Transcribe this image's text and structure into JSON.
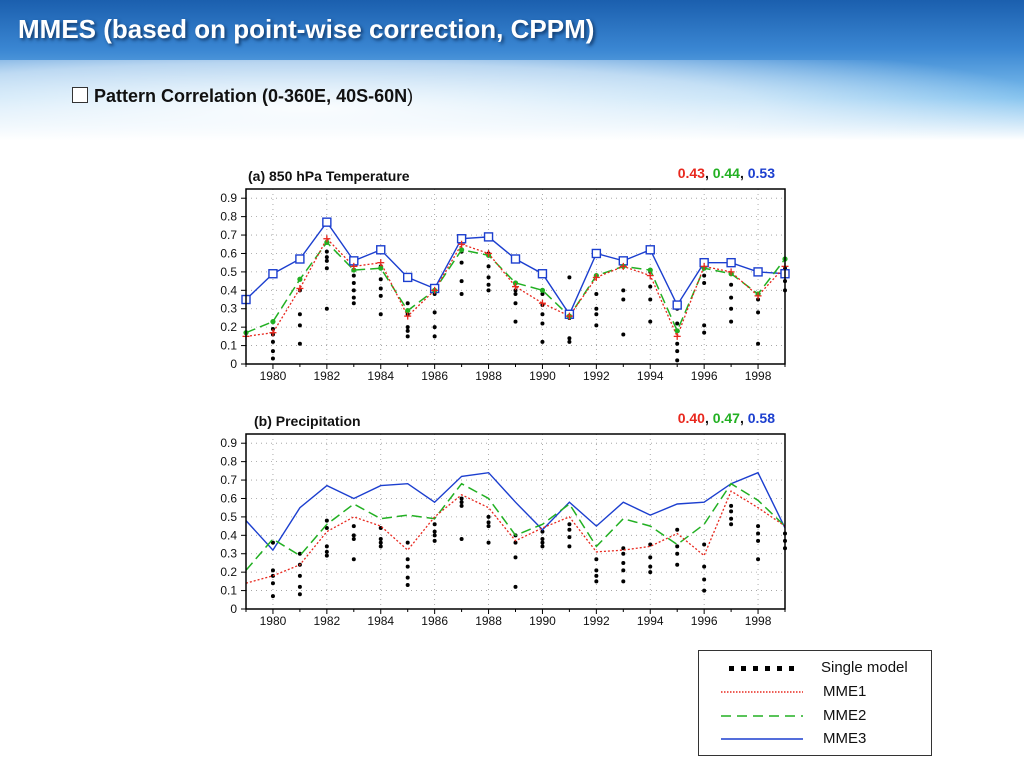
{
  "slide": {
    "title": "MMES (based on point-wise correction, CPPM)",
    "subtitle_bold": "Pattern Correlation (0-360E, 40S-60N",
    "subtitle_tail": ")"
  },
  "colors": {
    "mme1": "#e8281e",
    "mme2": "#22b022",
    "mme3": "#1c3fcf",
    "single": "#000000"
  },
  "legend": {
    "single": "Single model",
    "mme1": "MME1",
    "mme2": "MME2",
    "mme3": "MME3"
  },
  "chart_data": [
    {
      "type": "line",
      "title": "(a) 850 hPa Temperature",
      "scores": {
        "mme1": "0.43",
        "mme2": "0.44",
        "mme3": "0.53",
        "sep": ", "
      },
      "x": [
        1979,
        1980,
        1981,
        1982,
        1983,
        1984,
        1985,
        1986,
        1987,
        1988,
        1989,
        1990,
        1991,
        1992,
        1993,
        1994,
        1995,
        1996,
        1997,
        1998,
        1999
      ],
      "xlim": [
        1979,
        1999
      ],
      "ylim": [
        0,
        0.95
      ],
      "xticks": [
        1980,
        1982,
        1984,
        1986,
        1988,
        1990,
        1992,
        1994,
        1996,
        1998
      ],
      "yticks": [
        0,
        0.1,
        0.2,
        0.3,
        0.4,
        0.5,
        0.6,
        0.7,
        0.8,
        0.9
      ],
      "ytick_labels": [
        "0",
        "0.1",
        "0.2",
        "0.3",
        "0.4",
        "0.5",
        "0.6",
        "0.7",
        "0.8",
        "0.9"
      ],
      "series": [
        {
          "name": "MME1",
          "values": [
            0.15,
            0.17,
            0.41,
            0.68,
            0.53,
            0.55,
            0.26,
            0.4,
            0.65,
            0.6,
            0.42,
            0.33,
            0.26,
            0.47,
            0.53,
            0.48,
            0.15,
            0.53,
            0.5,
            0.37,
            0.53
          ]
        },
        {
          "name": "MME2",
          "values": [
            0.17,
            0.23,
            0.46,
            0.66,
            0.51,
            0.52,
            0.29,
            0.4,
            0.62,
            0.59,
            0.44,
            0.4,
            0.26,
            0.48,
            0.53,
            0.51,
            0.18,
            0.52,
            0.49,
            0.38,
            0.57
          ]
        },
        {
          "name": "MME3",
          "values": [
            0.35,
            0.49,
            0.57,
            0.77,
            0.56,
            0.62,
            0.47,
            0.41,
            0.68,
            0.69,
            0.57,
            0.49,
            0.27,
            0.6,
            0.56,
            0.62,
            0.32,
            0.55,
            0.55,
            0.5,
            0.49
          ]
        },
        {
          "name": "Single model",
          "points": [
            [
              1980,
              0.03
            ],
            [
              1980,
              0.07
            ],
            [
              1980,
              0.12
            ],
            [
              1980,
              0.16
            ],
            [
              1980,
              0.19
            ],
            [
              1981,
              0.11
            ],
            [
              1981,
              0.21
            ],
            [
              1981,
              0.27
            ],
            [
              1981,
              0.4
            ],
            [
              1982,
              0.3
            ],
            [
              1982,
              0.52
            ],
            [
              1982,
              0.56
            ],
            [
              1982,
              0.58
            ],
            [
              1982,
              0.61
            ],
            [
              1983,
              0.33
            ],
            [
              1983,
              0.36
            ],
            [
              1983,
              0.4
            ],
            [
              1983,
              0.44
            ],
            [
              1983,
              0.48
            ],
            [
              1984,
              0.27
            ],
            [
              1984,
              0.37
            ],
            [
              1984,
              0.41
            ],
            [
              1984,
              0.46
            ],
            [
              1984,
              0.53
            ],
            [
              1985,
              0.15
            ],
            [
              1985,
              0.18
            ],
            [
              1985,
              0.2
            ],
            [
              1985,
              0.27
            ],
            [
              1985,
              0.33
            ],
            [
              1986,
              0.15
            ],
            [
              1986,
              0.2
            ],
            [
              1986,
              0.28
            ],
            [
              1986,
              0.38
            ],
            [
              1987,
              0.38
            ],
            [
              1987,
              0.45
            ],
            [
              1987,
              0.55
            ],
            [
              1987,
              0.61
            ],
            [
              1988,
              0.4
            ],
            [
              1988,
              0.43
            ],
            [
              1988,
              0.47
            ],
            [
              1988,
              0.53
            ],
            [
              1988,
              0.6
            ],
            [
              1989,
              0.23
            ],
            [
              1989,
              0.33
            ],
            [
              1989,
              0.38
            ],
            [
              1989,
              0.4
            ],
            [
              1990,
              0.12
            ],
            [
              1990,
              0.22
            ],
            [
              1990,
              0.27
            ],
            [
              1990,
              0.32
            ],
            [
              1990,
              0.38
            ],
            [
              1991,
              0.12
            ],
            [
              1991,
              0.14
            ],
            [
              1991,
              0.25
            ],
            [
              1991,
              0.47
            ],
            [
              1992,
              0.21
            ],
            [
              1992,
              0.27
            ],
            [
              1992,
              0.3
            ],
            [
              1992,
              0.38
            ],
            [
              1993,
              0.16
            ],
            [
              1993,
              0.35
            ],
            [
              1993,
              0.4
            ],
            [
              1994,
              0.23
            ],
            [
              1994,
              0.35
            ],
            [
              1994,
              0.42
            ],
            [
              1994,
              0.5
            ],
            [
              1995,
              0.02
            ],
            [
              1995,
              0.07
            ],
            [
              1995,
              0.11
            ],
            [
              1995,
              0.22
            ],
            [
              1995,
              0.3
            ],
            [
              1996,
              0.17
            ],
            [
              1996,
              0.21
            ],
            [
              1996,
              0.44
            ],
            [
              1996,
              0.48
            ],
            [
              1997,
              0.23
            ],
            [
              1997,
              0.3
            ],
            [
              1997,
              0.36
            ],
            [
              1997,
              0.43
            ],
            [
              1998,
              0.11
            ],
            [
              1998,
              0.28
            ],
            [
              1998,
              0.35
            ],
            [
              1998,
              0.38
            ],
            [
              1999,
              0.4
            ],
            [
              1999,
              0.45
            ],
            [
              1999,
              0.52
            ]
          ]
        }
      ]
    },
    {
      "type": "line",
      "title": "(b) Precipitation",
      "scores": {
        "mme1": "0.40",
        "mme2": "0.47",
        "mme3": "0.58",
        "sep": ", "
      },
      "x": [
        1979,
        1980,
        1981,
        1982,
        1983,
        1984,
        1985,
        1986,
        1987,
        1988,
        1989,
        1990,
        1991,
        1992,
        1993,
        1994,
        1995,
        1996,
        1997,
        1998,
        1999
      ],
      "xlim": [
        1979,
        1999
      ],
      "ylim": [
        0,
        0.95
      ],
      "xticks": [
        1980,
        1982,
        1984,
        1986,
        1988,
        1990,
        1992,
        1994,
        1996,
        1998
      ],
      "yticks": [
        0,
        0.1,
        0.2,
        0.3,
        0.4,
        0.5,
        0.6,
        0.7,
        0.8,
        0.9
      ],
      "ytick_labels": [
        "0",
        "0.1",
        "0.2",
        "0.3",
        "0.4",
        "0.5",
        "0.6",
        "0.7",
        "0.8",
        "0.9"
      ],
      "series": [
        {
          "name": "MME1",
          "values": [
            0.14,
            0.18,
            0.24,
            0.42,
            0.5,
            0.45,
            0.32,
            0.5,
            0.62,
            0.55,
            0.37,
            0.44,
            0.5,
            0.31,
            0.32,
            0.34,
            0.41,
            0.29,
            0.64,
            0.55,
            0.45
          ]
        },
        {
          "name": "MME2",
          "values": [
            0.21,
            0.38,
            0.29,
            0.46,
            0.57,
            0.49,
            0.51,
            0.49,
            0.68,
            0.6,
            0.4,
            0.46,
            0.57,
            0.34,
            0.49,
            0.45,
            0.35,
            0.46,
            0.68,
            0.59,
            0.45
          ]
        },
        {
          "name": "MME3",
          "values": [
            0.48,
            0.32,
            0.55,
            0.67,
            0.6,
            0.67,
            0.68,
            0.58,
            0.72,
            0.74,
            0.58,
            0.43,
            0.58,
            0.45,
            0.58,
            0.51,
            0.57,
            0.58,
            0.68,
            0.74,
            0.44
          ]
        },
        {
          "name": "Single model",
          "points": [
            [
              1980,
              0.07
            ],
            [
              1980,
              0.14
            ],
            [
              1980,
              0.18
            ],
            [
              1980,
              0.21
            ],
            [
              1980,
              0.36
            ],
            [
              1981,
              0.08
            ],
            [
              1981,
              0.12
            ],
            [
              1981,
              0.18
            ],
            [
              1981,
              0.24
            ],
            [
              1981,
              0.3
            ],
            [
              1982,
              0.29
            ],
            [
              1982,
              0.31
            ],
            [
              1982,
              0.34
            ],
            [
              1982,
              0.44
            ],
            [
              1982,
              0.48
            ],
            [
              1983,
              0.27
            ],
            [
              1983,
              0.38
            ],
            [
              1983,
              0.4
            ],
            [
              1983,
              0.45
            ],
            [
              1984,
              0.34
            ],
            [
              1984,
              0.36
            ],
            [
              1984,
              0.38
            ],
            [
              1984,
              0.44
            ],
            [
              1985,
              0.13
            ],
            [
              1985,
              0.17
            ],
            [
              1985,
              0.23
            ],
            [
              1985,
              0.27
            ],
            [
              1985,
              0.36
            ],
            [
              1986,
              0.37
            ],
            [
              1986,
              0.4
            ],
            [
              1986,
              0.42
            ],
            [
              1986,
              0.46
            ],
            [
              1987,
              0.38
            ],
            [
              1987,
              0.56
            ],
            [
              1987,
              0.58
            ],
            [
              1987,
              0.6
            ],
            [
              1988,
              0.36
            ],
            [
              1988,
              0.45
            ],
            [
              1988,
              0.47
            ],
            [
              1988,
              0.5
            ],
            [
              1989,
              0.12
            ],
            [
              1989,
              0.28
            ],
            [
              1989,
              0.36
            ],
            [
              1989,
              0.4
            ],
            [
              1990,
              0.34
            ],
            [
              1990,
              0.36
            ],
            [
              1990,
              0.38
            ],
            [
              1990,
              0.42
            ],
            [
              1991,
              0.34
            ],
            [
              1991,
              0.39
            ],
            [
              1991,
              0.43
            ],
            [
              1991,
              0.46
            ],
            [
              1992,
              0.15
            ],
            [
              1992,
              0.18
            ],
            [
              1992,
              0.21
            ],
            [
              1992,
              0.27
            ],
            [
              1993,
              0.15
            ],
            [
              1993,
              0.21
            ],
            [
              1993,
              0.25
            ],
            [
              1993,
              0.3
            ],
            [
              1993,
              0.33
            ],
            [
              1994,
              0.2
            ],
            [
              1994,
              0.23
            ],
            [
              1994,
              0.28
            ],
            [
              1994,
              0.35
            ],
            [
              1995,
              0.24
            ],
            [
              1995,
              0.3
            ],
            [
              1995,
              0.34
            ],
            [
              1995,
              0.43
            ],
            [
              1996,
              0.1
            ],
            [
              1996,
              0.16
            ],
            [
              1996,
              0.23
            ],
            [
              1996,
              0.35
            ],
            [
              1997,
              0.46
            ],
            [
              1997,
              0.49
            ],
            [
              1997,
              0.53
            ],
            [
              1997,
              0.56
            ],
            [
              1998,
              0.27
            ],
            [
              1998,
              0.37
            ],
            [
              1998,
              0.41
            ],
            [
              1998,
              0.45
            ],
            [
              1999,
              0.33
            ],
            [
              1999,
              0.37
            ],
            [
              1999,
              0.41
            ]
          ]
        }
      ]
    }
  ]
}
